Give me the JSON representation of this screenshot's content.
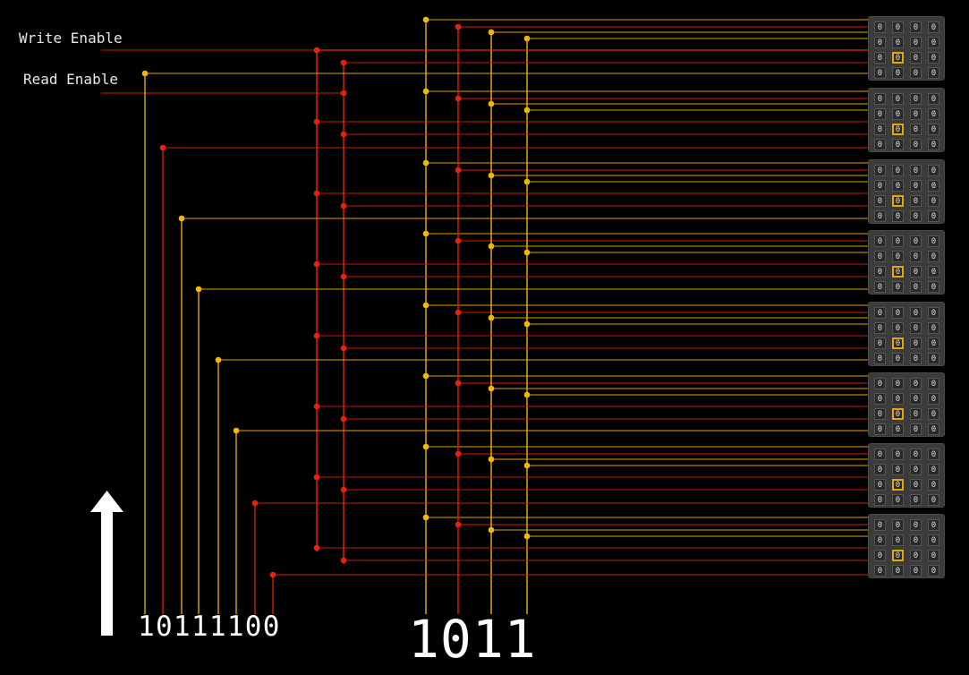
{
  "labels": {
    "write_enable": "Write Enable",
    "read_enable": "Read Enable"
  },
  "address_bits": "10111100",
  "column_bits": "1011",
  "colors": {
    "high": "#f5b800",
    "low": "#e8200c",
    "arrow": "#ffffff",
    "block_bg": "#3b3b3b",
    "selected_border": "#e6a800"
  },
  "memory": {
    "block_count": 8,
    "rows": 4,
    "cols": 4,
    "cell_value": "0",
    "selected_cell": {
      "row": 2,
      "col": 1
    }
  },
  "arrow_icon": "arrow-up-icon"
}
